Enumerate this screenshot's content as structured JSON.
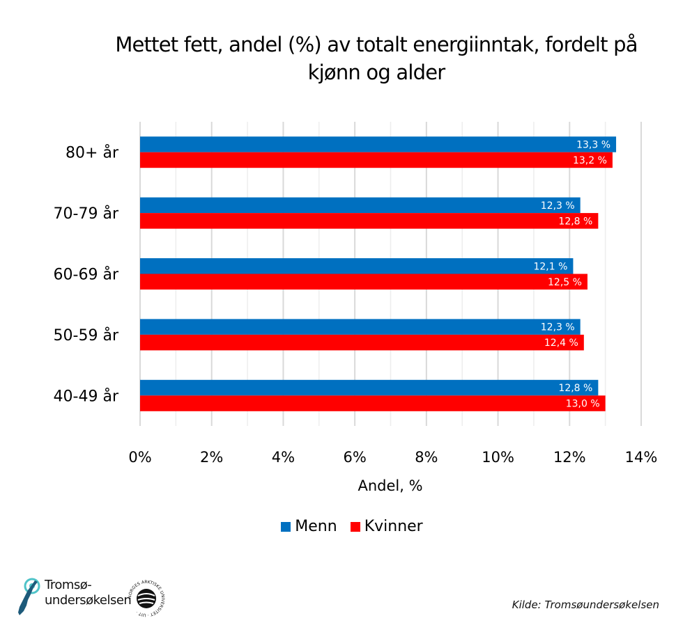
{
  "chart_data": {
    "type": "bar",
    "orientation": "horizontal",
    "title": "Mettet fett, andel (%) av totalt energiinntak, fordelt på kjønn og alder",
    "title_lines": [
      "Mettet fett, andel (%) av totalt energiinntak, fordelt på",
      "kjønn og alder"
    ],
    "xlabel": "Andel, %",
    "ylabel": "",
    "categories": [
      "80+ år",
      "70-79 år",
      "60-69 år",
      "50-59 år",
      "40-49 år"
    ],
    "series": [
      {
        "name": "Menn",
        "color": "#0070C0",
        "values": [
          13.3,
          12.3,
          12.1,
          12.3,
          12.8
        ],
        "labels": [
          "13,3 %",
          "12,3 %",
          "12,1 %",
          "12,3 %",
          "12,8 %"
        ]
      },
      {
        "name": "Kvinner",
        "color": "#FF0000",
        "values": [
          13.2,
          12.8,
          12.5,
          12.4,
          13.0
        ],
        "labels": [
          "13,2 %",
          "12,8 %",
          "12,5 %",
          "12,4 %",
          "13,0 %"
        ]
      }
    ],
    "xlim": [
      0,
      14
    ],
    "xticks": [
      0,
      2,
      4,
      6,
      8,
      10,
      12,
      14
    ],
    "xtick_labels": [
      "0%",
      "2%",
      "4%",
      "6%",
      "8%",
      "10%",
      "12%",
      "14%"
    ],
    "grid": true,
    "legend_position": "bottom"
  },
  "footer": {
    "logo_line1": "Tromsø-",
    "logo_line2": "undersøkelsen",
    "seal_text": "NORGES ARKTISKE UNIVERSITET · UIT ·",
    "source": "Kilde: Tromsøundersøkelsen"
  }
}
